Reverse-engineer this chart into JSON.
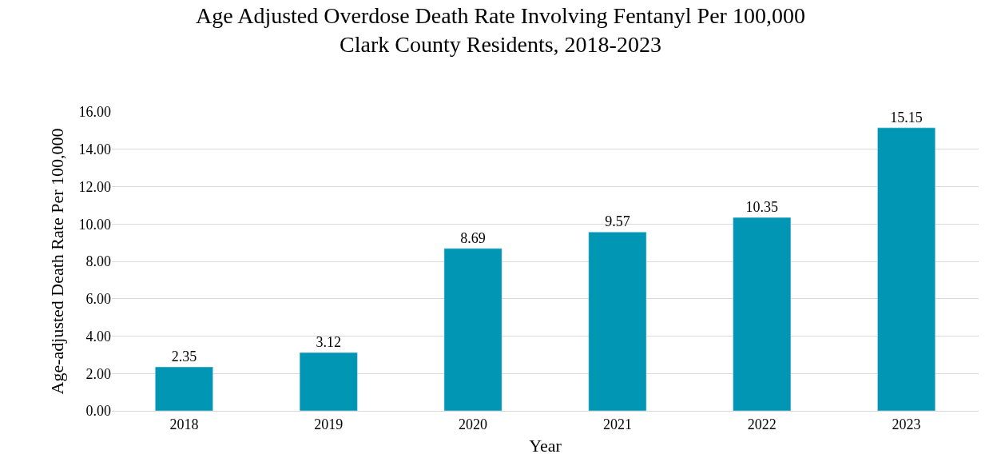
{
  "chart_data": {
    "type": "bar",
    "title": "Age Adjusted Overdose Death Rate Involving Fentanyl Per 100,000\nClark County Residents, 2018-2023",
    "xlabel": "Year",
    "ylabel": "Age-adjusted Death Rate Per 100,000",
    "categories": [
      "2018",
      "2019",
      "2020",
      "2021",
      "2022",
      "2023"
    ],
    "values": [
      2.35,
      3.12,
      8.69,
      9.57,
      10.35,
      15.15
    ],
    "color": "#0096b4",
    "ylim": [
      0,
      16
    ],
    "yticks": [
      {
        "value": 0,
        "label": "0.00"
      },
      {
        "value": 2,
        "label": "2.00"
      },
      {
        "value": 4,
        "label": "4.00"
      },
      {
        "value": 6,
        "label": "6.00"
      },
      {
        "value": 8,
        "label": "8.00"
      },
      {
        "value": 10,
        "label": "10.00"
      },
      {
        "value": 12,
        "label": "12.00"
      },
      {
        "value": 14,
        "label": "14.00"
      },
      {
        "value": 16,
        "label": "16.00"
      }
    ],
    "grid": "y",
    "data_labels": true
  }
}
